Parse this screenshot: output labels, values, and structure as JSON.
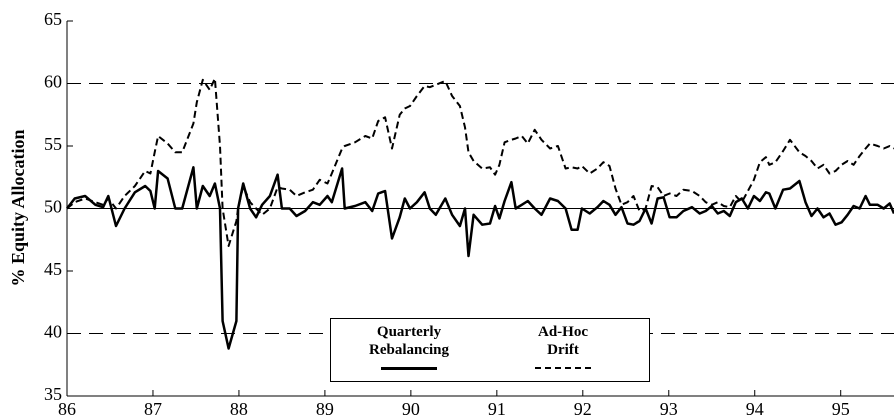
{
  "chart_data": {
    "type": "line",
    "ylabel": "% Equity Allocation",
    "xlim": [
      86,
      95.62
    ],
    "xticks": [
      86,
      87,
      88,
      89,
      90,
      91,
      92,
      93,
      94,
      95
    ],
    "ylim": [
      35,
      65
    ],
    "yticks": [
      35,
      40,
      45,
      50,
      55,
      60,
      65
    ],
    "hlines": [
      {
        "value": 40,
        "style": "dashed"
      },
      {
        "value": 50,
        "style": "solid"
      },
      {
        "value": 60,
        "style": "dashed"
      }
    ],
    "legend": "bottom-center",
    "x": [
      86.0,
      86.09,
      86.21,
      86.33,
      86.42,
      86.48,
      86.57,
      86.67,
      86.79,
      86.91,
      86.97,
      87.02,
      87.06,
      87.17,
      87.26,
      87.34,
      87.47,
      87.51,
      87.58,
      87.66,
      87.72,
      87.78,
      87.81,
      87.88,
      87.97,
      87.99,
      88.05,
      88.13,
      88.2,
      88.27,
      88.36,
      88.45,
      88.5,
      88.59,
      88.67,
      88.77,
      88.86,
      88.94,
      89.03,
      89.08,
      89.2,
      89.23,
      89.35,
      89.47,
      89.55,
      89.62,
      89.7,
      89.78,
      89.87,
      89.93,
      89.99,
      90.07,
      90.16,
      90.22,
      90.29,
      90.4,
      90.48,
      90.57,
      90.63,
      90.67,
      90.73,
      90.83,
      90.92,
      90.98,
      91.03,
      91.09,
      91.17,
      91.22,
      91.29,
      91.36,
      91.44,
      91.52,
      91.62,
      91.71,
      91.8,
      91.87,
      91.94,
      91.99,
      92.08,
      92.17,
      92.24,
      92.31,
      92.38,
      92.45,
      92.52,
      92.59,
      92.66,
      92.73,
      92.8,
      92.87,
      92.94,
      93.01,
      93.09,
      93.17,
      93.27,
      93.36,
      93.43,
      93.5,
      93.57,
      93.64,
      93.71,
      93.78,
      93.85,
      93.92,
      93.99,
      94.06,
      94.13,
      94.17,
      94.24,
      94.33,
      94.41,
      94.52,
      94.59,
      94.66,
      94.73,
      94.8,
      94.87,
      94.94,
      95.01,
      95.08,
      95.15,
      95.22,
      95.29,
      95.34,
      95.43,
      95.5,
      95.57,
      95.62
    ],
    "series": [
      {
        "name": "Quarterly Rebalancing",
        "color": "#000000",
        "dashed": false,
        "values": [
          50,
          50.8,
          51,
          50.3,
          50.1,
          51,
          48.6,
          50,
          51.3,
          51.8,
          51.4,
          50,
          53,
          52.4,
          50,
          50,
          53.3,
          50,
          51.8,
          51,
          52,
          50,
          41,
          38.8,
          41,
          50,
          52,
          50,
          49.3,
          50.3,
          51,
          52.7,
          50,
          50,
          49.4,
          49.8,
          50.5,
          50.3,
          51,
          50.5,
          53.2,
          50,
          50.2,
          50.5,
          49.8,
          51.2,
          51.4,
          47.6,
          49.3,
          50.8,
          50,
          50.5,
          51.3,
          50,
          49.5,
          50.8,
          49.5,
          48.6,
          50,
          46.2,
          49.5,
          48.7,
          48.8,
          50.2,
          49.2,
          50.6,
          52.1,
          50,
          50.3,
          50.6,
          50,
          49.5,
          50.8,
          50.6,
          50,
          48.3,
          48.3,
          50,
          49.6,
          50.1,
          50.6,
          50.3,
          49.5,
          50.1,
          48.8,
          48.7,
          49,
          50,
          48.8,
          50.8,
          50.9,
          49.3,
          49.3,
          49.8,
          50.1,
          49.6,
          49.8,
          50.2,
          49.6,
          49.8,
          49.4,
          50.5,
          50.8,
          50,
          51,
          50.6,
          51.3,
          51.2,
          50,
          51.5,
          51.6,
          52.2,
          50.5,
          49.4,
          50,
          49.3,
          49.6,
          48.7,
          48.9,
          49.5,
          50.2,
          50,
          51,
          50.3,
          50.3,
          50,
          50.4,
          49.6
        ]
      },
      {
        "name": "Ad-Hoc Drift",
        "color": "#000000",
        "dashed": true,
        "values": [
          50,
          50.5,
          50.8,
          50.5,
          50.3,
          50.8,
          50,
          51,
          51.8,
          53,
          52.8,
          54.5,
          55.8,
          55.2,
          54.5,
          54.5,
          56.8,
          58.5,
          60.3,
          59.5,
          60.4,
          55,
          50,
          47,
          49,
          50,
          51.8,
          50.5,
          50,
          49.5,
          50,
          51.7,
          51.6,
          51.5,
          51,
          51.3,
          51.5,
          52.3,
          52,
          52.8,
          54.8,
          55,
          55.3,
          55.8,
          55.6,
          57,
          57.3,
          54.8,
          57.5,
          58,
          58.2,
          59,
          59.8,
          59.7,
          59.9,
          60.2,
          59,
          58.2,
          56.5,
          54.5,
          53.8,
          53.2,
          53.3,
          52.7,
          53.5,
          55.3,
          55.5,
          55.6,
          55.8,
          55.2,
          56.3,
          55.5,
          54.8,
          55,
          53.2,
          53.3,
          53.2,
          53.4,
          52.8,
          53.2,
          53.7,
          53.4,
          51.6,
          50.3,
          50.5,
          51,
          49.8,
          50,
          51.8,
          51.7,
          51,
          51.2,
          51,
          51.5,
          51.4,
          51,
          50.5,
          50.3,
          50.5,
          50.2,
          50.1,
          51,
          50.5,
          51.4,
          52.3,
          53.7,
          54.1,
          53.5,
          53.7,
          54.6,
          55.5,
          54.5,
          54.2,
          53.8,
          53.2,
          53.5,
          52.8,
          53,
          53.5,
          53.8,
          53.5,
          54.2,
          54.8,
          55.2,
          55,
          54.8,
          55,
          54.8
        ]
      }
    ]
  }
}
